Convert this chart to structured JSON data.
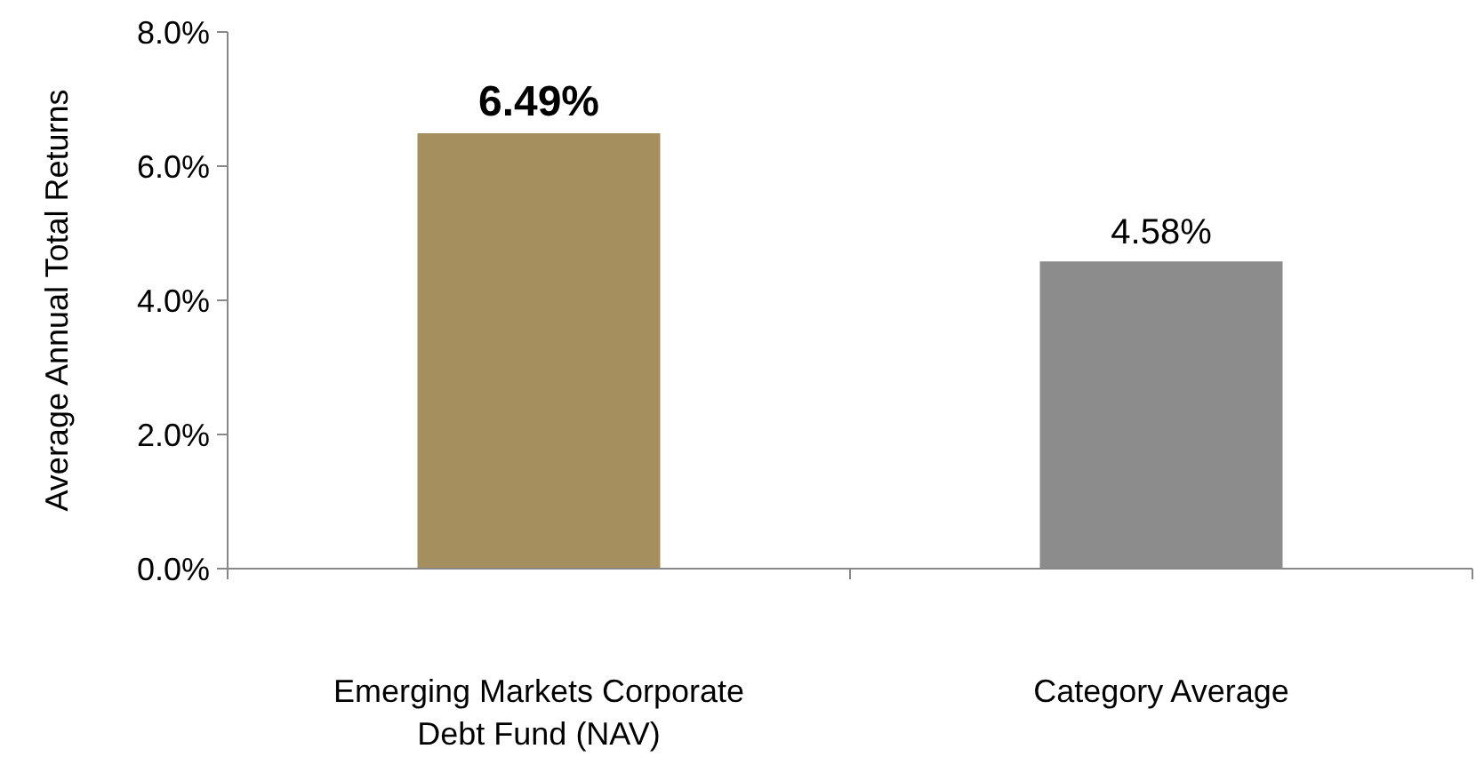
{
  "chart_data": {
    "type": "bar",
    "ylabel": "Average Annual Total Returns",
    "categories": [
      "Emerging Markets Corporate Debt Fund (NAV)",
      "Category Average"
    ],
    "values": [
      6.49,
      4.58
    ],
    "colors": [
      "#a58f5f",
      "#8c8c8c"
    ],
    "value_labels": [
      "6.49%",
      "4.58%"
    ],
    "ylim": [
      0,
      8
    ],
    "yticks": [
      {
        "value": 0,
        "label": "0.0%"
      },
      {
        "value": 2,
        "label": "2.0%"
      },
      {
        "value": 4,
        "label": "4.0%"
      },
      {
        "value": 6,
        "label": "6.0%"
      },
      {
        "value": 8,
        "label": "8.0%"
      }
    ],
    "grid": false
  }
}
